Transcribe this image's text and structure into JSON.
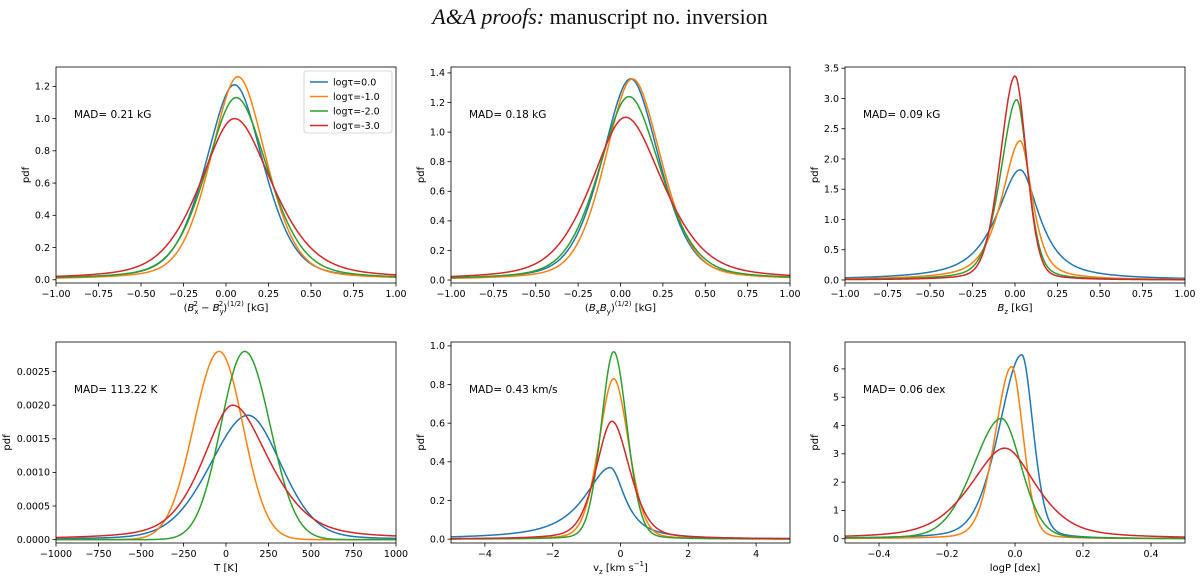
{
  "header": {
    "title_italic": "A&A proofs:",
    "title_rest": " manuscript no. inversion"
  },
  "legend": {
    "entries": [
      {
        "label": "logτ=0.0",
        "color": "#1f77b4"
      },
      {
        "label": "logτ=-1.0",
        "color": "#ff7f0e"
      },
      {
        "label": "logτ=-2.0",
        "color": "#2ca02c"
      },
      {
        "label": "logτ=-3.0",
        "color": "#d62728"
      }
    ]
  },
  "chart_data": [
    {
      "type": "line",
      "id": "p1",
      "xlabel": "(B_x^2 − B_y^2)^(1/2) [kG]",
      "ylabel": "pdf",
      "annotation": "MAD= 0.21 kG",
      "xlim": [
        -1.0,
        1.0
      ],
      "ylim": [
        -0.02,
        1.32
      ],
      "xticks": [
        -1.0,
        -0.75,
        -0.5,
        -0.25,
        0.0,
        0.25,
        0.5,
        0.75,
        1.0
      ],
      "xticklabels": [
        "−1.00",
        "−0.75",
        "−0.50",
        "−0.25",
        "0.00",
        "0.25",
        "0.50",
        "0.75",
        "1.00"
      ],
      "yticks": [
        0.0,
        0.2,
        0.4,
        0.6,
        0.8,
        1.0,
        1.2
      ],
      "yticklabels": [
        "0.0",
        "0.2",
        "0.4",
        "0.6",
        "0.8",
        "1.0",
        "1.2"
      ],
      "show_legend": true,
      "series": [
        {
          "name": "logτ=0.0",
          "peak": 1.21,
          "center": 0.05,
          "gamma": 0.18,
          "gamma_right": 0.18,
          "eta": 0.4
        },
        {
          "name": "logτ=-1.0",
          "peak": 1.26,
          "center": 0.07,
          "gamma": 0.17,
          "gamma_right": 0.175,
          "eta": 0.35
        },
        {
          "name": "logτ=-2.0",
          "peak": 1.13,
          "center": 0.06,
          "gamma": 0.19,
          "gamma_right": 0.2,
          "eta": 0.4
        },
        {
          "name": "logτ=-3.0",
          "peak": 1.0,
          "center": 0.05,
          "gamma": 0.22,
          "gamma_right": 0.24,
          "eta": 0.5
        }
      ]
    },
    {
      "type": "line",
      "id": "p2",
      "xlabel": "(B_xB_y)^(1/2) [kG]",
      "ylabel": "pdf",
      "annotation": "MAD= 0.18 kG",
      "xlim": [
        -1.0,
        1.0
      ],
      "ylim": [
        -0.02,
        1.44
      ],
      "xticks": [
        -1.0,
        -0.75,
        -0.5,
        -0.25,
        0.0,
        0.25,
        0.5,
        0.75,
        1.0
      ],
      "xticklabels": [
        "−1.00",
        "−0.75",
        "−0.50",
        "−0.25",
        "0.00",
        "0.25",
        "0.50",
        "0.75",
        "1.00"
      ],
      "yticks": [
        0.0,
        0.2,
        0.4,
        0.6,
        0.8,
        1.0,
        1.2,
        1.4
      ],
      "yticklabels": [
        "0.0",
        "0.2",
        "0.4",
        "0.6",
        "0.8",
        "1.0",
        "1.2",
        "1.4"
      ],
      "show_legend": false,
      "series": [
        {
          "name": "logτ=0.0",
          "peak": 1.36,
          "center": 0.06,
          "gamma": 0.18,
          "gamma_right": 0.18,
          "eta": 0.4
        },
        {
          "name": "logτ=-1.0",
          "peak": 1.36,
          "center": 0.07,
          "gamma": 0.17,
          "gamma_right": 0.18,
          "eta": 0.35
        },
        {
          "name": "logτ=-2.0",
          "peak": 1.24,
          "center": 0.05,
          "gamma": 0.19,
          "gamma_right": 0.2,
          "eta": 0.4
        },
        {
          "name": "logτ=-3.0",
          "peak": 1.1,
          "center": 0.03,
          "gamma": 0.22,
          "gamma_right": 0.24,
          "eta": 0.5
        }
      ]
    },
    {
      "type": "line",
      "id": "p3",
      "xlabel": "B_z [kG]",
      "ylabel": "pdf",
      "annotation": "MAD= 0.09 kG",
      "xlim": [
        -1.0,
        1.0
      ],
      "ylim": [
        -0.05,
        3.52
      ],
      "xticks": [
        -1.0,
        -0.75,
        -0.5,
        -0.25,
        0.0,
        0.25,
        0.5,
        0.75,
        1.0
      ],
      "xticklabels": [
        "−1.00",
        "−0.75",
        "−0.50",
        "−0.25",
        "0.00",
        "0.25",
        "0.50",
        "0.75",
        "1.00"
      ],
      "yticks": [
        0.0,
        0.5,
        1.0,
        1.5,
        2.0,
        2.5,
        3.0,
        3.5
      ],
      "yticklabels": [
        "0.0",
        "0.5",
        "1.0",
        "1.5",
        "2.0",
        "2.5",
        "3.0",
        "3.5"
      ],
      "show_legend": false,
      "series": [
        {
          "name": "logτ=0.0",
          "peak": 1.82,
          "center": 0.03,
          "gamma": 0.16,
          "gamma_right": 0.13,
          "eta": 0.85
        },
        {
          "name": "logτ=-1.0",
          "peak": 2.3,
          "center": 0.03,
          "gamma": 0.12,
          "gamma_right": 0.08,
          "eta": 0.65
        },
        {
          "name": "logτ=-2.0",
          "peak": 2.98,
          "center": 0.01,
          "gamma": 0.1,
          "gamma_right": 0.07,
          "eta": 0.4
        },
        {
          "name": "logτ=-3.0",
          "peak": 3.37,
          "center": 0.0,
          "gamma": 0.09,
          "gamma_right": 0.07,
          "eta": 0.25
        }
      ]
    },
    {
      "type": "line",
      "id": "p4",
      "xlabel": "T [K]",
      "ylabel": "pdf",
      "annotation": "MAD= 113.22 K",
      "xlim": [
        -1000,
        1000
      ],
      "ylim": [
        -5e-05,
        0.00294
      ],
      "xticks": [
        -1000,
        -750,
        -500,
        -250,
        0,
        250,
        500,
        750,
        1000
      ],
      "xticklabels": [
        "−1000",
        "−750",
        "−500",
        "−250",
        "0",
        "250",
        "500",
        "750",
        "1000"
      ],
      "yticks": [
        0.0,
        0.0005,
        0.001,
        0.0015,
        0.002,
        0.0025
      ],
      "yticklabels": [
        "0.0000",
        "0.0005",
        "0.0010",
        "0.0015",
        "0.0020",
        "0.0025"
      ],
      "show_legend": false,
      "series": [
        {
          "name": "logτ=0.0",
          "peak": 0.00185,
          "center": 130,
          "gamma": 230,
          "gamma_right": 200,
          "eta": 0.2
        },
        {
          "name": "logτ=-1.0",
          "peak": 0.0028,
          "center": -40,
          "gamma": 150,
          "gamma_right": 140,
          "eta": 0.0
        },
        {
          "name": "logτ=-2.0",
          "peak": 0.0028,
          "center": 110,
          "gamma": 140,
          "gamma_right": 150,
          "eta": 0.0
        },
        {
          "name": "logτ=-3.0",
          "peak": 0.002,
          "center": 40,
          "gamma": 190,
          "gamma_right": 230,
          "eta": 0.5
        }
      ]
    },
    {
      "type": "line",
      "id": "p5",
      "xlabel": "v_z [km s^-1]",
      "ylabel": "pdf",
      "annotation": "MAD= 0.43 km/s",
      "xlim": [
        -5,
        5
      ],
      "ylim": [
        -0.02,
        1.02
      ],
      "xticks": [
        -4,
        -2,
        0,
        2,
        4
      ],
      "xticklabels": [
        "−4",
        "−2",
        "0",
        "2",
        "4"
      ],
      "yticks": [
        0.0,
        0.2,
        0.4,
        0.6,
        0.8,
        1.0
      ],
      "yticklabels": [
        "0.0",
        "0.2",
        "0.4",
        "0.6",
        "0.8",
        "1.0"
      ],
      "show_legend": false,
      "series": [
        {
          "name": "logτ=0.0",
          "peak": 0.37,
          "center": -0.3,
          "gamma": 0.9,
          "gamma_right": 0.5,
          "eta": 0.9
        },
        {
          "name": "logτ=-1.0",
          "peak": 0.83,
          "center": -0.2,
          "gamma": 0.45,
          "gamma_right": 0.45,
          "eta": 0.2
        },
        {
          "name": "logτ=-2.0",
          "peak": 0.97,
          "center": -0.2,
          "gamma": 0.38,
          "gamma_right": 0.4,
          "eta": 0.15
        },
        {
          "name": "logτ=-3.0",
          "peak": 0.61,
          "center": -0.25,
          "gamma": 0.5,
          "gamma_right": 0.55,
          "eta": 0.4
        }
      ]
    },
    {
      "type": "line",
      "id": "p6",
      "xlabel": "logP [dex]",
      "ylabel": "pdf",
      "annotation": "MAD= 0.06 dex",
      "xlim": [
        -0.5,
        0.5
      ],
      "ylim": [
        -0.15,
        6.95
      ],
      "xticks": [
        -0.4,
        -0.2,
        0.0,
        0.2,
        0.4
      ],
      "xticklabels": [
        "−0.4",
        "−0.2",
        "0.0",
        "0.2",
        "0.4"
      ],
      "yticks": [
        0,
        1,
        2,
        3,
        4,
        5,
        6
      ],
      "yticklabels": [
        "0",
        "1",
        "2",
        "3",
        "4",
        "5",
        "6"
      ],
      "show_legend": false,
      "series": [
        {
          "name": "logτ=0.0",
          "peak": 6.5,
          "center": 0.02,
          "gamma": 0.07,
          "gamma_right": 0.035,
          "eta": 0.3
        },
        {
          "name": "logτ=-1.0",
          "peak": 6.08,
          "center": -0.01,
          "gamma": 0.05,
          "gamma_right": 0.035,
          "eta": 0.2
        },
        {
          "name": "logτ=-2.0",
          "peak": 4.25,
          "center": -0.04,
          "gamma": 0.085,
          "gamma_right": 0.06,
          "eta": 0.2
        },
        {
          "name": "logτ=-3.0",
          "peak": 3.2,
          "center": -0.03,
          "gamma": 0.11,
          "gamma_right": 0.1,
          "eta": 0.55
        }
      ]
    }
  ]
}
